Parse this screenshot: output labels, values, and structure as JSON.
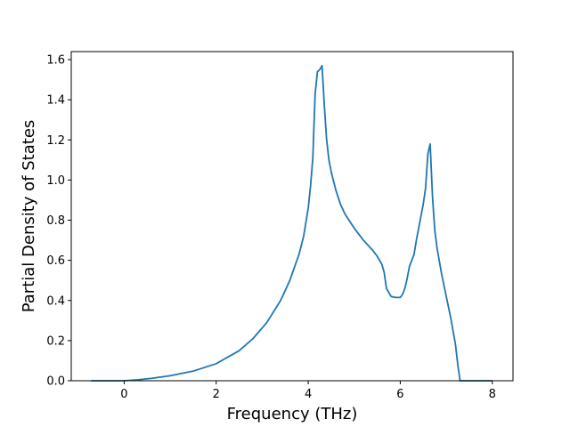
{
  "chart_data": {
    "type": "line",
    "title": "",
    "xlabel": "Frequency (THz)",
    "ylabel": "Partial Density of States",
    "xlim": [
      -1.15,
      8.45
    ],
    "ylim": [
      0.0,
      1.64
    ],
    "xticks": [
      0,
      2,
      4,
      6,
      8
    ],
    "xtick_labels": [
      "0",
      "2",
      "4",
      "6",
      "8"
    ],
    "yticks": [
      0.0,
      0.2,
      0.4,
      0.6,
      0.8,
      1.0,
      1.2,
      1.4,
      1.6
    ],
    "ytick_labels": [
      "0.0",
      "0.2",
      "0.4",
      "0.6",
      "0.8",
      "1.0",
      "1.2",
      "1.4",
      "1.6"
    ],
    "grid": false,
    "legend": "none",
    "series": [
      {
        "color": "#1f77b4",
        "x": [
          -0.72,
          -0.3,
          0.0,
          0.3,
          0.6,
          1.0,
          1.5,
          2.0,
          2.5,
          2.8,
          3.1,
          3.4,
          3.6,
          3.8,
          3.9,
          4.0,
          4.05,
          4.1,
          4.15,
          4.2,
          4.25,
          4.3,
          4.35,
          4.4,
          4.45,
          4.5,
          4.6,
          4.7,
          4.8,
          5.0,
          5.2,
          5.4,
          5.5,
          5.6,
          5.65,
          5.7,
          5.8,
          5.9,
          6.0,
          6.05,
          6.1,
          6.15,
          6.2,
          6.3,
          6.35,
          6.4,
          6.45,
          6.5,
          6.55,
          6.6,
          6.65,
          6.7,
          6.75,
          6.8,
          6.9,
          7.0,
          7.1,
          7.2,
          7.25,
          7.3,
          7.5,
          8.0
        ],
        "y": [
          0.0,
          0.0,
          0.0,
          0.005,
          0.012,
          0.025,
          0.048,
          0.085,
          0.15,
          0.21,
          0.29,
          0.4,
          0.5,
          0.63,
          0.72,
          0.86,
          0.97,
          1.11,
          1.43,
          1.54,
          1.55,
          1.57,
          1.37,
          1.2,
          1.1,
          1.04,
          0.95,
          0.88,
          0.83,
          0.76,
          0.7,
          0.65,
          0.62,
          0.58,
          0.54,
          0.46,
          0.42,
          0.415,
          0.415,
          0.43,
          0.46,
          0.51,
          0.57,
          0.63,
          0.7,
          0.76,
          0.82,
          0.88,
          0.96,
          1.13,
          1.18,
          0.92,
          0.75,
          0.66,
          0.53,
          0.42,
          0.31,
          0.18,
          0.08,
          0.0,
          0.0,
          0.0
        ]
      }
    ]
  }
}
